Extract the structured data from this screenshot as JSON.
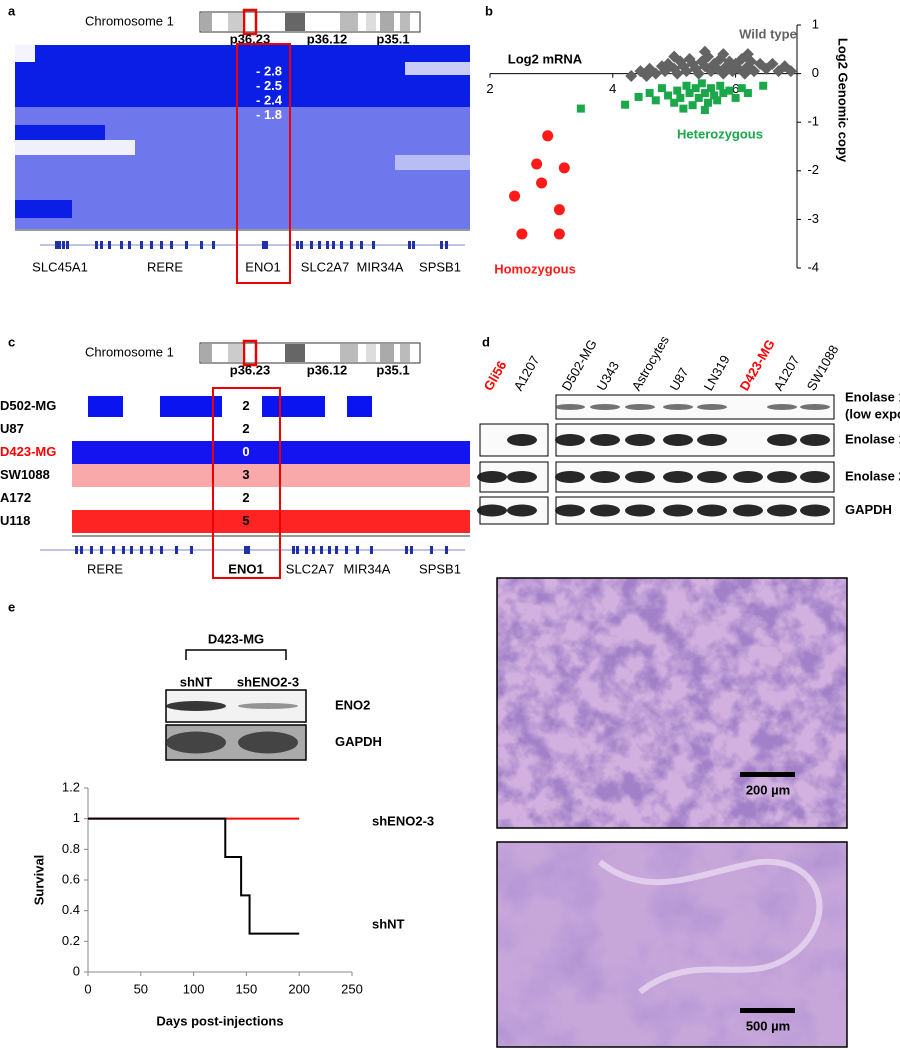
{
  "panel_labels": [
    "a",
    "b",
    "c",
    "d",
    "e"
  ],
  "panel_a": {
    "chromosome": "Chromosome  1",
    "bands": [
      "p36.23",
      "p36.12",
      "p35.1"
    ],
    "values": [
      "- 2.8",
      "- 2.5",
      "- 2.4",
      "- 1.8"
    ],
    "genes": [
      "SLC45A1",
      "RERE",
      "ENO1",
      "SLC2A7",
      "MIR34A",
      "SPSB1"
    ]
  },
  "panel_c": {
    "chromosome": "Chromosome  1",
    "bands": [
      "p36.23",
      "p36.12",
      "p35.1"
    ],
    "rows": [
      {
        "sample": "D502-MG",
        "copy_number": 2,
        "label_color": "#000000",
        "color": "#0a14f0"
      },
      {
        "sample": "U87",
        "copy_number": 2,
        "label_color": "#000000",
        "color": "#ffffff"
      },
      {
        "sample": "D423-MG",
        "copy_number": 0,
        "label_color": "#ff0000",
        "color": "#1414f0"
      },
      {
        "sample": "SW1088",
        "copy_number": 3,
        "label_color": "#000000",
        "color": "#f9a9a9"
      },
      {
        "sample": "A172",
        "copy_number": 2,
        "label_color": "#000000",
        "color": "#ffffff"
      },
      {
        "sample": "U118",
        "copy_number": 5,
        "label_color": "#000000",
        "color": "#ff2424"
      }
    ],
    "genes": [
      "RERE",
      "ENO1",
      "SLC2A7",
      "MIR34A",
      "SPSB1"
    ]
  },
  "panel_d": {
    "lanes": [
      {
        "name": "Gli56",
        "color": "#ff0000"
      },
      {
        "name": "A1207",
        "color": "#000000"
      },
      {
        "name": "D502-MG",
        "color": "#000000"
      },
      {
        "name": "U343",
        "color": "#000000"
      },
      {
        "name": "Astrocytes",
        "color": "#000000"
      },
      {
        "name": "U87",
        "color": "#000000"
      },
      {
        "name": "LN319",
        "color": "#000000"
      },
      {
        "name": "D423-MG",
        "color": "#ff0000"
      },
      {
        "name": "A1207",
        "color": "#000000"
      },
      {
        "name": "SW1088",
        "color": "#000000"
      }
    ],
    "rows": [
      {
        "label": "Enolase 1",
        "sublabel": "(low exposure)"
      },
      {
        "label": "Enolase 1"
      },
      {
        "label": "Enolase 2"
      },
      {
        "label": "GAPDH"
      }
    ]
  },
  "panel_e": {
    "cell_line": "D423-MG",
    "lanes": [
      "shNT",
      "shENO2-3"
    ],
    "rows": [
      "ENO2",
      "GAPDH"
    ],
    "scale_bars": [
      "200 µm",
      "500 µm"
    ]
  },
  "chart_data": [
    {
      "type": "scatter",
      "xlabel": "Log2 mRNA",
      "ylabel": "Log2 Genomic copy",
      "xlim": [
        2,
        7
      ],
      "ylim": [
        -4,
        1
      ],
      "xticks": [
        2,
        4,
        6
      ],
      "yticks": [
        1,
        0,
        -1,
        -2,
        -3,
        -4
      ],
      "series": [
        {
          "name": "Wild type",
          "color": "#636363",
          "marker": "diamond",
          "x": [
            4.45,
            4.6,
            4.7,
            4.8,
            4.85,
            4.9,
            5.0,
            5.05,
            5.1,
            5.15,
            5.2,
            5.25,
            5.3,
            5.35,
            5.4,
            5.45,
            5.5,
            5.55,
            5.6,
            5.65,
            5.7,
            5.75,
            5.8,
            5.85,
            5.9,
            5.95,
            6.0,
            6.05,
            6.1,
            6.15,
            6.2,
            6.25,
            6.3,
            6.4,
            6.5,
            6.6,
            6.7,
            6.8,
            6.9,
            5.0,
            5.5,
            6.2,
            4.3,
            4.55,
            5.8
          ],
          "values": [
            0.05,
            0.1,
            0.0,
            0.15,
            0.05,
            0.2,
            0.1,
            0.0,
            0.25,
            0.15,
            0.05,
            0.3,
            0.2,
            0.1,
            0.0,
            0.25,
            0.15,
            0.35,
            0.05,
            0.2,
            0.1,
            0.3,
            0.0,
            0.15,
            0.25,
            0.05,
            0.2,
            0.1,
            0.3,
            0.0,
            0.15,
            0.25,
            0.05,
            0.2,
            0.1,
            0.2,
            0.05,
            0.15,
            0.05,
            0.35,
            0.45,
            0.4,
            -0.05,
            -0.05,
            0.4
          ]
        },
        {
          "name": "Heterozygous",
          "color": "#1aa84a",
          "marker": "square",
          "x": [
            3.48,
            4.2,
            4.42,
            4.6,
            4.7,
            4.8,
            4.9,
            5.0,
            5.05,
            5.1,
            5.2,
            5.25,
            5.3,
            5.35,
            5.4,
            5.45,
            5.5,
            5.55,
            5.6,
            5.65,
            5.7,
            5.75,
            5.8,
            5.9,
            6.0,
            6.1,
            6.2,
            6.45,
            5.15,
            5.5
          ],
          "values": [
            -0.72,
            -0.64,
            -0.48,
            -0.4,
            -0.55,
            -0.3,
            -0.45,
            -0.6,
            -0.35,
            -0.5,
            -0.25,
            -0.4,
            -0.65,
            -0.3,
            -0.5,
            -0.2,
            -0.4,
            -0.6,
            -0.3,
            -0.45,
            -0.55,
            -0.25,
            -0.4,
            -0.35,
            -0.5,
            -0.3,
            -0.4,
            -0.25,
            -0.72,
            -0.75
          ]
        },
        {
          "name": "Homozygous",
          "color": "#ff1a1a",
          "marker": "circle",
          "x": [
            2.94,
            2.76,
            3.21,
            2.84,
            2.4,
            3.13,
            2.52,
            3.13
          ],
          "values": [
            -1.28,
            -1.86,
            -1.94,
            -2.25,
            -2.52,
            -2.8,
            -3.3,
            -3.3
          ]
        }
      ]
    },
    {
      "type": "line",
      "xlabel": "Days post-injections",
      "ylabel": "Survival",
      "xlim": [
        0,
        250
      ],
      "ylim": [
        0,
        1.2
      ],
      "xticks": [
        0,
        50,
        100,
        150,
        200,
        250
      ],
      "yticks": [
        0,
        0.2,
        0.4,
        0.6,
        0.8,
        1,
        1.2
      ],
      "series": [
        {
          "name": "shENO2-3",
          "color": "#ff0000",
          "x": [
            0,
            200
          ],
          "values": [
            1,
            1
          ]
        },
        {
          "name": "shNT",
          "color": "#000000",
          "x": [
            0,
            130,
            130,
            145,
            145,
            153,
            153,
            200
          ],
          "values": [
            1,
            1,
            0.75,
            0.75,
            0.5,
            0.5,
            0.25,
            0.25
          ]
        }
      ]
    }
  ]
}
